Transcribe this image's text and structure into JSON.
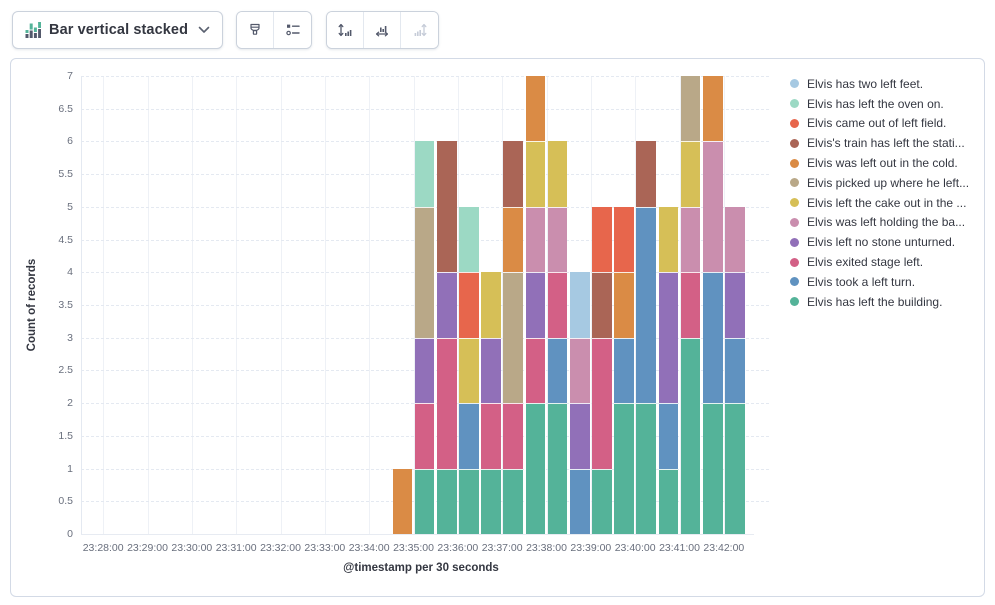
{
  "toolbar": {
    "chart_type_selector": {
      "label": "Bar vertical stacked",
      "icon": "bar-vertical-stacked-icon"
    },
    "style_group": {
      "buttons": [
        "brush",
        "legend-list"
      ]
    },
    "axes_group": {
      "buttons": [
        "left-axis",
        "bottom-axis",
        "right-axis"
      ],
      "disabled": [
        "right-axis"
      ]
    }
  },
  "ui_colors": {
    "panel_border": "#D3DAE6",
    "button_border": "#CBD2DC",
    "grid_vertical": "#EEF1F6",
    "grid_horizontal_dashed": "#E4E9F1",
    "tick_text": "#696F7D",
    "title_text": "#343741",
    "icon_enabled": "#53596B",
    "icon_disabled": "#C6CCD8",
    "icon_accent_green": "#54B399"
  },
  "chart_data": {
    "type": "bar",
    "stacked": true,
    "title": "",
    "xlabel": "@timestamp per 30 seconds",
    "ylabel": "Count of records",
    "ylim": [
      0,
      7
    ],
    "y_tick_step": 0.5,
    "y_ticks": [
      "0",
      "0.5",
      "1",
      "1.5",
      "2",
      "2.5",
      "3",
      "3.5",
      "4",
      "4.5",
      "5",
      "5.5",
      "6",
      "6.5",
      "7"
    ],
    "x_ticks": [
      "23:28:00",
      "23:29:00",
      "23:30:00",
      "23:31:00",
      "23:32:00",
      "23:33:00",
      "23:34:00",
      "23:35:00",
      "23:36:00",
      "23:37:00",
      "23:38:00",
      "23:39:00",
      "23:40:00",
      "23:41:00",
      "23:42:00"
    ],
    "x_domain": {
      "start": "23:27:30",
      "end": "23:42:30",
      "bucket_seconds": 30,
      "slots": 30,
      "first_bar_slot": 14
    },
    "grid": {
      "horizontal": "dashed",
      "vertical": "solid"
    },
    "legend_position": "right",
    "legend_order": "reverse-of-series",
    "categories": [
      "23:34:30",
      "23:35:00",
      "23:35:30",
      "23:36:00",
      "23:36:30",
      "23:37:00",
      "23:37:30",
      "23:38:00",
      "23:38:30",
      "23:39:00",
      "23:39:30",
      "23:40:00",
      "23:40:30",
      "23:41:00",
      "23:41:30",
      "23:42:00"
    ],
    "stack_order": "bottom-to-top",
    "series": [
      {
        "name": "Elvis has left the building.",
        "color": "#54B399",
        "values": [
          0,
          1,
          1,
          1,
          1,
          1,
          2,
          2,
          0,
          1,
          2,
          2,
          1,
          3,
          2,
          2
        ]
      },
      {
        "name": "Elvis took a left turn.",
        "color": "#6092C0",
        "values": [
          0,
          0,
          0,
          1,
          0,
          0,
          0,
          1,
          1,
          0,
          1,
          3,
          1,
          0,
          2,
          1
        ]
      },
      {
        "name": "Elvis exited stage left.",
        "color": "#D36086",
        "values": [
          0,
          1,
          2,
          0,
          1,
          1,
          1,
          1,
          0,
          2,
          0,
          0,
          0,
          1,
          0,
          0
        ]
      },
      {
        "name": "Elvis left no stone unturned.",
        "color": "#9170B8",
        "values": [
          0,
          1,
          1,
          0,
          1,
          0,
          1,
          0,
          1,
          0,
          0,
          0,
          2,
          0,
          0,
          1
        ]
      },
      {
        "name": "Elvis was left holding the ba...",
        "color": "#CA8EAE",
        "values": [
          0,
          0,
          0,
          0,
          0,
          0,
          1,
          1,
          1,
          0,
          0,
          0,
          0,
          1,
          2,
          1
        ]
      },
      {
        "name": "Elvis left the cake out in the ...",
        "color": "#D6BF57",
        "values": [
          0,
          0,
          0,
          1,
          1,
          0,
          1,
          1,
          0,
          0,
          0,
          0,
          1,
          1,
          0,
          0
        ]
      },
      {
        "name": "Elvis picked up where he left...",
        "color": "#B9A888",
        "values": [
          0,
          2,
          0,
          0,
          0,
          2,
          0,
          0,
          0,
          0,
          0,
          0,
          0,
          1,
          0,
          0
        ]
      },
      {
        "name": "Elvis was left out in the cold.",
        "color": "#DA8B45",
        "values": [
          1,
          0,
          0,
          0,
          0,
          1,
          1,
          0,
          0,
          0,
          1,
          0,
          0,
          0,
          1,
          0
        ]
      },
      {
        "name": "Elvis's train has left the stati...",
        "color": "#AA6556",
        "values": [
          0,
          0,
          2,
          0,
          0,
          1,
          0,
          0,
          0,
          1,
          0,
          1,
          0,
          0,
          0,
          0
        ]
      },
      {
        "name": "Elvis came out of left field.",
        "color": "#E7664C",
        "values": [
          0,
          0,
          0,
          1,
          0,
          0,
          0,
          0,
          0,
          1,
          1,
          0,
          0,
          0,
          0,
          0
        ]
      },
      {
        "name": "Elvis has left the oven on.",
        "color": "#9CD9C4",
        "values": [
          0,
          1,
          0,
          1,
          0,
          0,
          0,
          0,
          0,
          0,
          0,
          0,
          0,
          0,
          0,
          0
        ]
      },
      {
        "name": "Elvis has two left feet.",
        "color": "#A6C9E2",
        "values": [
          0,
          0,
          0,
          0,
          0,
          0,
          0,
          0,
          1,
          0,
          0,
          0,
          0,
          0,
          0,
          0
        ]
      }
    ]
  }
}
